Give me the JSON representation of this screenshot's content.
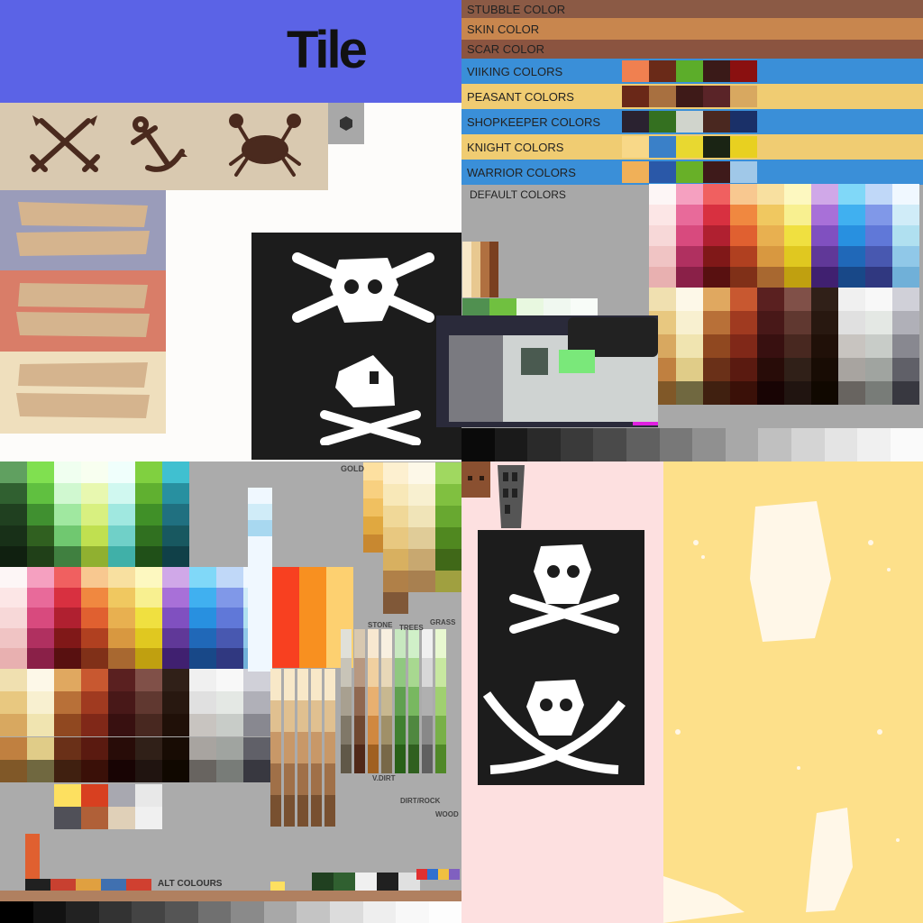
{
  "title": "Tile",
  "colors": {
    "header_blue": "#5b63e6",
    "tan": "#d9c9b0",
    "brown_icon": "#4a2a1e",
    "default_gray": "#a8a8a8",
    "light_pink": "#fde0e0",
    "butter": "#fde08a",
    "flag_black": "#1c1c1c"
  },
  "icons": [
    "crossed-swords-icon",
    "anchor-icon",
    "crab-icon",
    "hex-nut-icon",
    "skull-crossbones-icon",
    "skull-icon",
    "skull-cutlasses-icon",
    "brick-icon",
    "tower-icon"
  ],
  "palette_rows": [
    {
      "label": "STUBBLE COLOR",
      "bg": "#8b5a45"
    },
    {
      "label": "SKIN COLOR",
      "bg": "#c8864e"
    },
    {
      "label": "SCAR COLOR",
      "bg": "#8b5440"
    },
    {
      "label": "VIIKING COLORS",
      "bg": "#3a8fd8",
      "swatches": [
        "#f08050",
        "#6a2a18",
        "#5cad2a",
        "#3a1a18",
        "#8a1010"
      ]
    },
    {
      "label": "PEASANT COLORS",
      "bg": "#f0cc72",
      "swatches": [
        "#6a2818",
        "#a87040",
        "#3e1a18",
        "#5a2428",
        "#d8a860"
      ]
    },
    {
      "label": "SHOPKEEPER COLORS",
      "bg": "#3a8fd8",
      "swatches": [
        "#2a2230",
        "#347020",
        "#d0d4cc",
        "#4a2820",
        "#1a3068"
      ]
    },
    {
      "label": "KNIGHT COLORS",
      "bg": "#f0cc72",
      "swatches": [
        "#f8d888",
        "#3a80c8",
        "#e8d830",
        "#1a2414",
        "#e8d020"
      ]
    },
    {
      "label": "WARRIOR COLORS",
      "bg": "#3a8fd8",
      "swatches": [
        "#f0b058",
        "#2a58a8",
        "#68b028",
        "#3e1a1a",
        "#a0c8e8"
      ]
    }
  ],
  "default_label": "DEFAULT COLORS",
  "terrain_labels": {
    "gold": "GOLD",
    "stone": "STONE",
    "trees": "TREES",
    "grass": "GRASS",
    "vdirt": "V.DIRT",
    "dirt_rock": "DIRT/ROCK",
    "wood": "WOOD",
    "alt": "ALT COLOURS"
  }
}
